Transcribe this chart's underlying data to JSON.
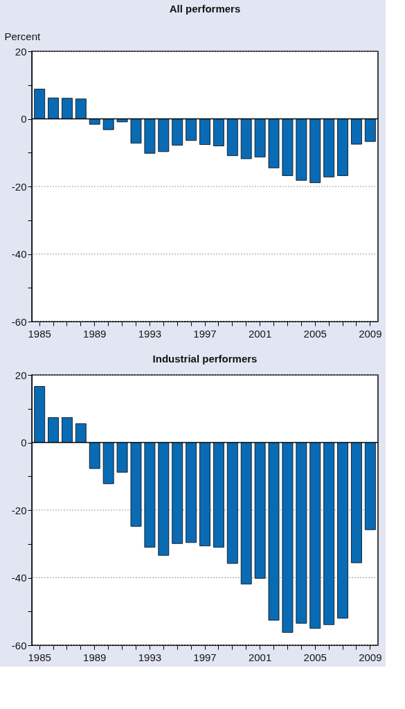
{
  "chart_data": [
    {
      "type": "bar",
      "title": "All performers",
      "ylabel": "Percent",
      "categories": [
        "1985",
        null,
        null,
        null,
        "1989",
        null,
        null,
        null,
        "1993",
        null,
        null,
        null,
        "1997",
        null,
        null,
        null,
        "2001",
        null,
        null,
        null,
        "2005",
        null,
        null,
        null,
        "2009"
      ],
      "series": [
        {
          "color": "#0a6bb5",
          "values": [
            8.8,
            6.2,
            6.1,
            5.9,
            -1.6,
            -3.2,
            -0.9,
            -7.2,
            -10.2,
            -9.7,
            -7.8,
            -6.4,
            -7.6,
            -8.0,
            -10.9,
            -11.8,
            -11.3,
            -14.5,
            -16.8,
            -18.2,
            -18.9,
            -17.2,
            -16.8,
            -7.5,
            -6.7
          ]
        }
      ],
      "ylim": [
        -60,
        20
      ],
      "yticks": [
        -60,
        {
          "value": -50,
          "label": null
        },
        -40,
        {
          "value": -30,
          "label": null
        },
        -20,
        {
          "value": -10,
          "label": null
        },
        0,
        {
          "value": 10,
          "label": null
        },
        20
      ],
      "grid": "y",
      "ref_lines": [
        {
          "axis": "y",
          "value": 0
        }
      ]
    },
    {
      "type": "bar",
      "title": "Industrial performers",
      "categories": [
        "1985",
        null,
        null,
        null,
        "1989",
        null,
        null,
        null,
        "1993",
        null,
        null,
        null,
        "1997",
        null,
        null,
        null,
        "2001",
        null,
        null,
        null,
        "2005",
        null,
        null,
        null,
        "2009"
      ],
      "series": [
        {
          "color": "#0a6bb5",
          "values": [
            16.6,
            7.4,
            7.4,
            5.6,
            -7.7,
            -12.2,
            -8.8,
            -24.8,
            -31.0,
            -33.4,
            -29.9,
            -29.6,
            -30.6,
            -31.0,
            -35.8,
            -41.9,
            -40.2,
            -52.6,
            -56.2,
            -53.5,
            -55.0,
            -53.9,
            -52.0,
            -35.6,
            -25.8
          ]
        }
      ],
      "ylim": [
        -60,
        20
      ],
      "yticks": [
        -60,
        {
          "value": -50,
          "label": null
        },
        -40,
        {
          "value": -30,
          "label": null
        },
        -20,
        {
          "value": -10,
          "label": null
        },
        0,
        {
          "value": 10,
          "label": null
        },
        20
      ],
      "grid": "y",
      "ref_lines": [
        {
          "axis": "y",
          "value": 0
        }
      ]
    }
  ]
}
